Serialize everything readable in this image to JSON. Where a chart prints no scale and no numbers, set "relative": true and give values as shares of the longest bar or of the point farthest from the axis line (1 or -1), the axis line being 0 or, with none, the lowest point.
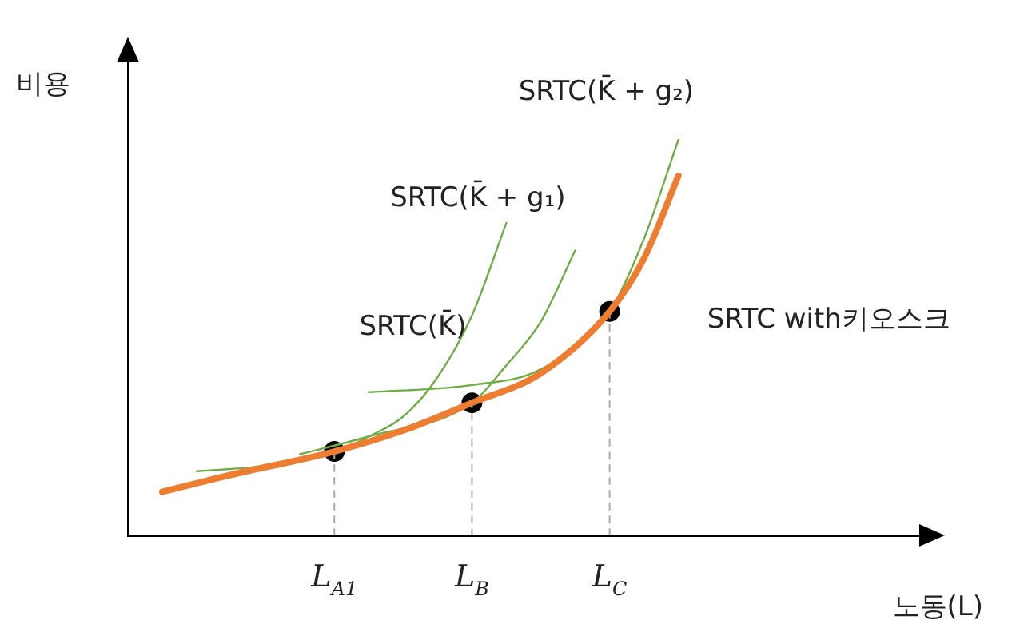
{
  "chart_data": {
    "type": "line",
    "relative": true,
    "xlabel": "노동(L)",
    "ylabel": "비용",
    "categories": [
      null,
      null,
      null,
      null,
      null,
      null,
      "L$_{A1}$",
      null,
      null,
      null,
      "L$_{B}$",
      null,
      null,
      null,
      "L$_{C}$",
      null,
      null,
      null,
      null,
      null,
      null,
      null,
      null,
      null
    ],
    "tick_labels": "x",
    "grid": false,
    "legend": false,
    "series": [
      {
        "name": "SRTC with키오스크",
        "color": "#ed7d31",
        "marker": "none",
        "values": [
          null,
          0.11,
          null,
          0.153,
          null,
          null,
          0.212,
          null,
          0.265,
          null,
          0.335,
          null,
          0.41,
          null,
          0.566,
          0.7,
          0.909,
          null,
          null,
          null,
          null,
          null,
          null,
          null
        ]
      },
      {
        "name": "SRTC(K̄)",
        "color": "#70ad47",
        "marker": "none",
        "values": [
          null,
          null,
          0.162,
          null,
          0.176,
          null,
          0.209,
          0.25,
          0.3,
          0.4,
          0.556,
          0.79,
          null,
          null,
          null,
          null,
          null,
          null,
          null,
          null,
          null,
          null,
          null,
          null
        ]
      },
      {
        "name": "SRTC(K̄ + g₁)",
        "color": "#70ad47",
        "marker": "none",
        "values": [
          null,
          null,
          null,
          null,
          null,
          0.205,
          null,
          0.25,
          null,
          null,
          0.335,
          0.43,
          0.54,
          0.72,
          null,
          null,
          null,
          null,
          null,
          null,
          null,
          null,
          null,
          null
        ]
      },
      {
        "name": "SRTC(K̄ + g₂)",
        "color": "#70ad47",
        "marker": "none",
        "values": [
          null,
          null,
          null,
          null,
          null,
          null,
          null,
          0.362,
          null,
          null,
          0.38,
          null,
          0.42,
          null,
          0.566,
          0.75,
          1,
          null,
          null,
          null,
          null,
          null,
          null,
          null
        ]
      },
      {
        "color": "#aaaaaa",
        "marker": "none",
        "line_style": "dashed",
        "x": [
          "L$_{A1}$",
          "L$_{A1}$"
        ],
        "values": [
          0,
          0.212
        ]
      },
      {
        "color": "#aaaaaa",
        "marker": "none",
        "line_style": "dashed",
        "x": [
          "L$_{B}$",
          "L$_{B}$"
        ],
        "values": [
          0,
          0.335
        ]
      },
      {
        "color": "#aaaaaa",
        "marker": "none",
        "line_style": "dashed",
        "x": [
          "L$_{C}$",
          "L$_{C}$"
        ],
        "values": [
          0,
          0.566
        ]
      },
      {
        "type": "scatter",
        "color": "#000000",
        "marker": "circle",
        "x": [
          "L$_{A1}$",
          "L$_{B}$",
          "L$_{C}$"
        ],
        "values": [
          0.212,
          0.335,
          0.566
        ]
      }
    ]
  }
}
